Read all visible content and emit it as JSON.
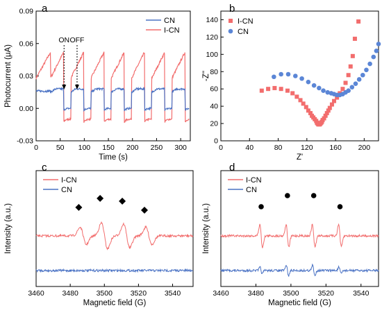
{
  "chart_data": [
    {
      "panel": "a",
      "type": "line",
      "xlabel": "Time (s)",
      "ylabel": "Photocurrent (μA)",
      "xlim": [
        0,
        320
      ],
      "ylim": [
        -0.03,
        0.09
      ],
      "xticks": [
        0,
        50,
        100,
        150,
        200,
        250,
        300
      ],
      "yticks": [
        -0.03,
        0.0,
        0.03,
        0.06,
        0.09
      ],
      "legend_position": "top-right",
      "annotations": [
        {
          "text": "ON",
          "x": 58
        },
        {
          "text": "OFF",
          "x": 85
        }
      ],
      "on_off": {
        "first_on": 30,
        "on_duration": 27,
        "off_duration": 15,
        "cycles": 7
      },
      "series": [
        {
          "name": "CN",
          "color": "#4a72c4",
          "baseline": 0.0,
          "on_level": 0.018,
          "on_level_start": 0.015
        },
        {
          "name": "I-CN",
          "color": "#f26d6d",
          "baseline": -0.01,
          "on_peak": 0.052,
          "on_start": 0.028,
          "off_undershoot": -0.013
        }
      ]
    },
    {
      "panel": "b",
      "type": "scatter",
      "xlabel": "Z'",
      "ylabel": "-Z''",
      "xlim": [
        0,
        220
      ],
      "ylim": [
        0,
        150
      ],
      "xticks": [
        0,
        40,
        80,
        120,
        160,
        200
      ],
      "yticks": [
        0,
        20,
        40,
        60,
        80,
        100,
        120,
        140
      ],
      "legend_position": "top-left",
      "series": [
        {
          "name": "I-CN",
          "marker": "square",
          "color": "#f26d6d",
          "points": [
            [
              57,
              58
            ],
            [
              66,
              60
            ],
            [
              75,
              61
            ],
            [
              84,
              60
            ],
            [
              93,
              58
            ],
            [
              100,
              55
            ],
            [
              106,
              51
            ],
            [
              111,
              47
            ],
            [
              115,
              43
            ],
            [
              119,
              39
            ],
            [
              122,
              35
            ],
            [
              125,
              32
            ],
            [
              127,
              29
            ],
            [
              129,
              27
            ],
            [
              131,
              25
            ],
            [
              133,
              23
            ],
            [
              134,
              21
            ],
            [
              135,
              20
            ],
            [
              136,
              19
            ],
            [
              137,
              19
            ],
            [
              138,
              19
            ],
            [
              139,
              20
            ],
            [
              140,
              21
            ],
            [
              141,
              22
            ],
            [
              142,
              24
            ],
            [
              144,
              26
            ],
            [
              146,
              29
            ],
            [
              148,
              32
            ],
            [
              150,
              35
            ],
            [
              152,
              38
            ],
            [
              155,
              42
            ],
            [
              158,
              46
            ],
            [
              162,
              50
            ],
            [
              166,
              55
            ],
            [
              170,
              60
            ],
            [
              174,
              67
            ],
            [
              178,
              76
            ],
            [
              181,
              86
            ],
            [
              184,
              98
            ],
            [
              187,
              118
            ],
            [
              192,
              138
            ]
          ]
        },
        {
          "name": "CN",
          "marker": "circle",
          "color": "#5b86d6",
          "points": [
            [
              74,
              74
            ],
            [
              84,
              77
            ],
            [
              94,
              77
            ],
            [
              104,
              75
            ],
            [
              113,
              72
            ],
            [
              122,
              68
            ],
            [
              130,
              64
            ],
            [
              137,
              61
            ],
            [
              143,
              58
            ],
            [
              149,
              56
            ],
            [
              154,
              55
            ],
            [
              158,
              54
            ],
            [
              162,
              53
            ],
            [
              166,
              53
            ],
            [
              170,
              54
            ],
            [
              174,
              56
            ],
            [
              178,
              58
            ],
            [
              183,
              62
            ],
            [
              188,
              66
            ],
            [
              193,
              71
            ],
            [
              198,
              76
            ],
            [
              203,
              82
            ],
            [
              208,
              89
            ],
            [
              213,
              97
            ],
            [
              217,
              104
            ],
            [
              220,
              112
            ]
          ]
        }
      ]
    },
    {
      "panel": "c",
      "type": "line",
      "xlabel": "Magnetic field (G)",
      "ylabel": "Intensity (a.u.)",
      "xlim": [
        3460,
        3552
      ],
      "xticks": [
        3460,
        3480,
        3500,
        3520,
        3540
      ],
      "legend_position": "top-left",
      "marker_symbol": "diamond",
      "peaks": [
        3485,
        3497.5,
        3510.5,
        3523.5
      ],
      "series": [
        {
          "name": "I-CN",
          "color": "#f26d6d",
          "offset": 1.0,
          "amplitude": 0.55
        },
        {
          "name": "CN",
          "color": "#4a72c4",
          "offset": 0.0,
          "amplitude": 0.0
        }
      ]
    },
    {
      "panel": "d",
      "type": "line",
      "xlabel": "Magnetic field (G)",
      "ylabel": "Intensity (a.u.)",
      "xlim": [
        3460,
        3550
      ],
      "xticks": [
        3460,
        3480,
        3500,
        3520,
        3540
      ],
      "legend_position": "top-left",
      "marker_symbol": "circle",
      "peaks": [
        3483,
        3498,
        3513,
        3528
      ],
      "series": [
        {
          "name": "I-CN",
          "color": "#f26d6d",
          "offset": 1.0,
          "amplitude": 0.5
        },
        {
          "name": "CN",
          "color": "#4a72c4",
          "offset": 0.0,
          "amplitude": 0.3
        }
      ]
    }
  ]
}
